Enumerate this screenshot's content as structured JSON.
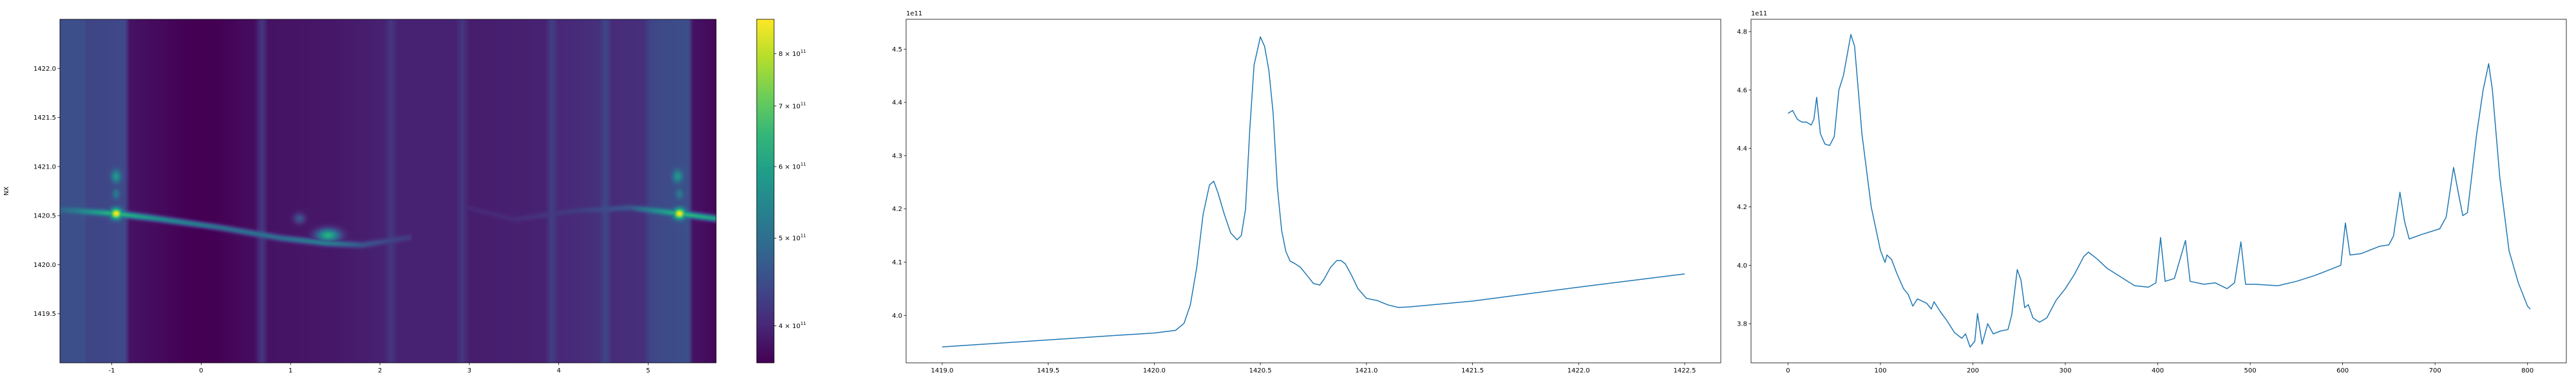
{
  "chart_data": [
    {
      "type": "heatmap",
      "ylabel": "NX",
      "xlabel": "",
      "xlim": [
        -1.58,
        5.76
      ],
      "ylim": [
        1419.0,
        1422.5
      ],
      "xticks": [
        "-1",
        "0",
        "1",
        "2",
        "3",
        "4",
        "5"
      ],
      "xtick_values": [
        -1,
        0,
        1,
        2,
        3,
        4,
        5
      ],
      "yticks": [
        "1419.5",
        "1420.0",
        "1420.5",
        "1421.0",
        "1421.5",
        "1422.0"
      ],
      "ytick_values": [
        1419.5,
        1420.0,
        1420.5,
        1421.0,
        1421.5,
        1422.0
      ],
      "colormap": "viridis",
      "colorbar": {
        "scale": "log",
        "range": [
          364000000000.0,
          873000000000.0
        ],
        "ticks": [
          {
            "value": 400000000000.0,
            "base": "4 × 10",
            "exp": "11"
          },
          {
            "value": 500000000000.0,
            "base": "5 × 10",
            "exp": "11"
          },
          {
            "value": 600000000000.0,
            "base": "6 × 10",
            "exp": "11"
          },
          {
            "value": 700000000000.0,
            "base": "7 × 10",
            "exp": "11"
          },
          {
            "value": 800000000000.0,
            "base": "8 × 10",
            "exp": "11"
          }
        ]
      },
      "column_background": {
        "x": [
          -1.58,
          -1.3,
          -1.28,
          -0.85,
          -0.8,
          0,
          0.6,
          0.68,
          0.75,
          1.5,
          2.05,
          2.12,
          2.2,
          2.85,
          2.92,
          3.0,
          3.85,
          3.92,
          4.0,
          4.45,
          4.52,
          4.6,
          4.95,
          5.02,
          5.1,
          5.45,
          5.5,
          5.76
        ],
        "value": [
          450000000000.0,
          450000000000.0,
          435000000000.0,
          440000000000.0,
          380000000000.0,
          360000000000.0,
          375000000000.0,
          420000000000.0,
          380000000000.0,
          385000000000.0,
          395000000000.0,
          420000000000.0,
          395000000000.0,
          395000000000.0,
          420000000000.0,
          390000000000.0,
          395000000000.0,
          430000000000.0,
          400000000000.0,
          410000000000.0,
          440000000000.0,
          405000000000.0,
          410000000000.0,
          435000000000.0,
          440000000000.0,
          450000000000.0,
          380000000000.0,
          370000000000.0
        ]
      },
      "features": [
        {
          "x": -0.95,
          "y": 1420.52,
          "value": 870000000000.0,
          "sx": 0.06,
          "sy": 0.05
        },
        {
          "x": 5.35,
          "y": 1420.52,
          "value": 870000000000.0,
          "sx": 0.06,
          "sy": 0.05
        },
        {
          "x": -0.95,
          "y": 1420.9,
          "value": 580000000000.0,
          "sx": 0.05,
          "sy": 0.06
        },
        {
          "x": 5.33,
          "y": 1420.9,
          "value": 580000000000.0,
          "sx": 0.05,
          "sy": 0.06
        },
        {
          "x": -0.95,
          "y": 1420.72,
          "value": 520000000000.0,
          "sx": 0.04,
          "sy": 0.05
        },
        {
          "x": 5.35,
          "y": 1420.72,
          "value": 520000000000.0,
          "sx": 0.04,
          "sy": 0.05
        },
        {
          "x": 1.42,
          "y": 1420.3,
          "value": 630000000000.0,
          "sx": 0.12,
          "sy": 0.06
        },
        {
          "x": 1.1,
          "y": 1420.47,
          "value": 460000000000.0,
          "sx": 0.06,
          "sy": 0.05
        }
      ],
      "streaks": [
        {
          "x": [
            -1.58,
            -0.95,
            -0.5,
            0.2,
            0.9,
            1.4,
            1.8,
            2.35
          ],
          "y": [
            1420.56,
            1420.52,
            1420.47,
            1420.38,
            1420.27,
            1420.22,
            1420.2,
            1420.28
          ],
          "value": [
            480000000000.0,
            650000000000.0,
            560000000000.0,
            500000000000.0,
            500000000000.0,
            530000000000.0,
            460000000000.0,
            420000000000.0
          ]
        },
        {
          "x": [
            2.9,
            3.5,
            4.2,
            4.8,
            5.35,
            5.76
          ],
          "y": [
            1420.6,
            1420.46,
            1420.55,
            1420.58,
            1420.52,
            1420.47
          ],
          "value": [
            400000000000.0,
            405000000000.0,
            425000000000.0,
            460000000000.0,
            650000000000.0,
            600000000000.0
          ]
        }
      ]
    },
    {
      "type": "line",
      "offset_label": "1e11",
      "xlim": [
        1418.83,
        1422.67
      ],
      "ylim": [
        3.911,
        4.556
      ],
      "xticks": [
        "1419.0",
        "1419.5",
        "1420.0",
        "1420.5",
        "1421.0",
        "1421.5",
        "1422.0",
        "1422.5"
      ],
      "xtick_values": [
        1419.0,
        1419.5,
        1420.0,
        1420.5,
        1421.0,
        1421.5,
        1422.0,
        1422.5
      ],
      "yticks": [
        "4.0",
        "4.1",
        "4.2",
        "4.3",
        "4.4",
        "4.5"
      ],
      "ytick_values": [
        4.0,
        4.1,
        4.2,
        4.3,
        4.4,
        4.5
      ],
      "color": "#1f77b4",
      "x": [
        1419.0,
        1419.5,
        1419.8,
        1420.0,
        1420.1,
        1420.14,
        1420.17,
        1420.2,
        1420.23,
        1420.26,
        1420.28,
        1420.3,
        1420.33,
        1420.36,
        1420.39,
        1420.41,
        1420.43,
        1420.45,
        1420.47,
        1420.49,
        1420.5,
        1420.52,
        1420.54,
        1420.56,
        1420.58,
        1420.6,
        1420.62,
        1420.64,
        1420.66,
        1420.69,
        1420.72,
        1420.75,
        1420.78,
        1420.8,
        1420.83,
        1420.86,
        1420.88,
        1420.9,
        1420.93,
        1420.96,
        1421.0,
        1421.05,
        1421.1,
        1421.15,
        1421.2,
        1421.5,
        1422.0,
        1422.5
      ],
      "y": [
        3.941,
        3.954,
        3.962,
        3.967,
        3.972,
        3.985,
        4.02,
        4.09,
        4.19,
        4.245,
        4.252,
        4.23,
        4.19,
        4.155,
        4.142,
        4.15,
        4.2,
        4.35,
        4.47,
        4.505,
        4.523,
        4.505,
        4.46,
        4.38,
        4.24,
        4.16,
        4.12,
        4.102,
        4.098,
        4.09,
        4.075,
        4.06,
        4.057,
        4.068,
        4.09,
        4.103,
        4.103,
        4.097,
        4.075,
        4.05,
        4.032,
        4.028,
        4.02,
        4.015,
        4.016,
        4.027,
        4.053,
        4.078
      ]
    },
    {
      "type": "line",
      "offset_label": "1e11",
      "xlim": [
        -40,
        842
      ],
      "ylim": [
        3.666,
        4.842
      ],
      "xticks": [
        "0",
        "100",
        "200",
        "300",
        "400",
        "500",
        "600",
        "700",
        "800"
      ],
      "xtick_values": [
        0,
        100,
        200,
        300,
        400,
        500,
        600,
        700,
        800
      ],
      "yticks": [
        "3.8",
        "4.0",
        "4.2",
        "4.4",
        "4.6",
        "4.8"
      ],
      "ytick_values": [
        3.8,
        4.0,
        4.2,
        4.4,
        4.6,
        4.8
      ],
      "color": "#1f77b4",
      "x": [
        0,
        5,
        10,
        15,
        20,
        25,
        28,
        31,
        35,
        40,
        45,
        50,
        55,
        60,
        64,
        68,
        72,
        80,
        90,
        100,
        105,
        107,
        112,
        118,
        125,
        130,
        135,
        140,
        150,
        155,
        158,
        165,
        172,
        180,
        188,
        192,
        197,
        202,
        205,
        210,
        216,
        222,
        230,
        238,
        242,
        248,
        252,
        256,
        260,
        265,
        272,
        280,
        290,
        300,
        310,
        320,
        325,
        335,
        345,
        360,
        375,
        390,
        398,
        403,
        408,
        418,
        425,
        430,
        435,
        450,
        462,
        475,
        483,
        490,
        495,
        505,
        530,
        550,
        570,
        590,
        598,
        603,
        608,
        620,
        640,
        650,
        655,
        662,
        667,
        672,
        685,
        705,
        712,
        720,
        725,
        730,
        735,
        745,
        752,
        758,
        762,
        770,
        780,
        790,
        800,
        803
      ],
      "y": [
        4.52,
        4.53,
        4.5,
        4.49,
        4.49,
        4.48,
        4.5,
        4.575,
        4.45,
        4.415,
        4.41,
        4.44,
        4.6,
        4.65,
        4.72,
        4.79,
        4.75,
        4.45,
        4.2,
        4.05,
        4.01,
        4.035,
        4.02,
        3.97,
        3.92,
        3.9,
        3.86,
        3.885,
        3.87,
        3.85,
        3.875,
        3.84,
        3.81,
        3.77,
        3.75,
        3.765,
        3.72,
        3.74,
        3.835,
        3.73,
        3.8,
        3.765,
        3.775,
        3.78,
        3.83,
        3.985,
        3.95,
        3.855,
        3.865,
        3.82,
        3.805,
        3.82,
        3.88,
        3.92,
        3.97,
        4.03,
        4.045,
        4.02,
        3.99,
        3.96,
        3.93,
        3.925,
        3.94,
        4.095,
        3.945,
        3.955,
        4.03,
        4.085,
        3.945,
        3.935,
        3.94,
        3.92,
        3.94,
        4.08,
        3.935,
        3.935,
        3.93,
        3.945,
        3.965,
        3.99,
        4.0,
        4.145,
        4.035,
        4.04,
        4.065,
        4.07,
        4.1,
        4.25,
        4.15,
        4.09,
        4.105,
        4.125,
        4.165,
        4.335,
        4.25,
        4.17,
        4.18,
        4.45,
        4.6,
        4.69,
        4.6,
        4.3,
        4.05,
        3.94,
        3.86,
        3.85
      ]
    }
  ]
}
